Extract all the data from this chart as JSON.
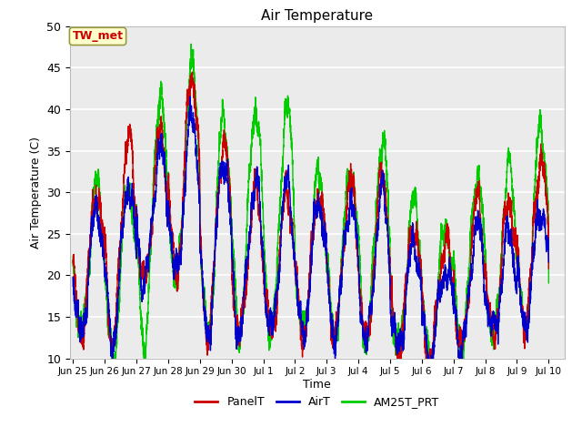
{
  "title": "Air Temperature",
  "ylabel": "Air Temperature (C)",
  "xlabel": "Time",
  "ylim": [
    10,
    50
  ],
  "background_color": "#ebebeb",
  "grid_color": "white",
  "line_colors": {
    "PanelT": "#cc0000",
    "AirT": "#0000cc",
    "AM25T_PRT": "#00cc00"
  },
  "annotation_text": "TW_met",
  "annotation_color": "#cc0000",
  "annotation_bg": "#ffffcc",
  "annotation_border": "#999944",
  "xtick_labels": [
    "Jun 25",
    "Jun 26",
    "Jun 27",
    "Jun 28",
    "Jun 29",
    "Jun 30",
    "Jul 1",
    "Jul 2",
    "Jul 3",
    "Jul 4",
    "Jul 5",
    "Jul 6",
    "Jul 7",
    "Jul 8",
    "Jul 9",
    "Jul 10"
  ],
  "ytick_values": [
    10,
    15,
    20,
    25,
    30,
    35,
    40,
    45,
    50
  ],
  "figsize": [
    6.4,
    4.8
  ],
  "dpi": 100
}
